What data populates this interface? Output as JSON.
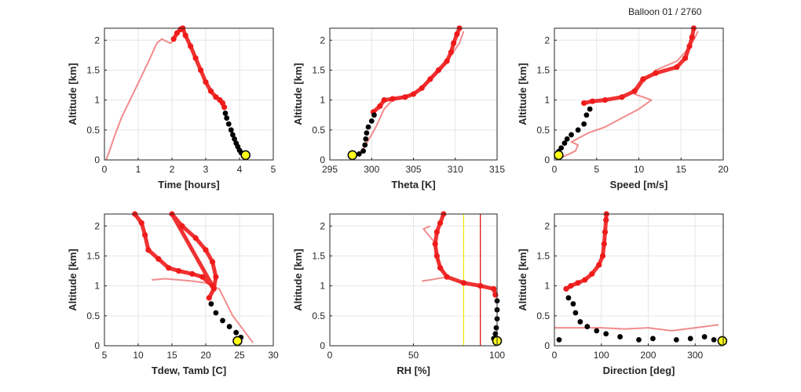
{
  "figure": {
    "title": "Balloon 01 / 2760"
  },
  "colors": {
    "red": "#ee1c1c",
    "red_faint": "#f07878",
    "black": "#000000",
    "yellow": "#ffff1a",
    "grid": "#e6e6e6",
    "axis": "#262626",
    "rh_yellow_line": "#f2e600",
    "rh_red_line": "#e00000"
  },
  "chart_data": [
    {
      "type": "scatter",
      "xlabel": "Time [hours]",
      "ylabel": "Altitude [km]",
      "xlim": [
        0,
        5
      ],
      "ylim": [
        0,
        2.2
      ],
      "xticks": [
        0,
        1,
        2,
        3,
        4,
        5
      ],
      "yticks": [
        0,
        0.5,
        1,
        1.5,
        2
      ],
      "grid": true,
      "faint_line": [
        [
          0.05,
          0
        ],
        [
          0.15,
          0.15
        ],
        [
          0.3,
          0.4
        ],
        [
          0.5,
          0.7
        ],
        [
          0.8,
          1.05
        ],
        [
          1.1,
          1.4
        ],
        [
          1.35,
          1.7
        ],
        [
          1.55,
          1.95
        ],
        [
          1.7,
          2.02
        ],
        [
          1.8,
          1.99
        ],
        [
          1.95,
          1.95
        ],
        [
          2.05,
          2.0
        ]
      ],
      "red_points": [
        [
          2.05,
          2.02
        ],
        [
          2.15,
          2.12
        ],
        [
          2.25,
          2.18
        ],
        [
          2.32,
          2.2
        ],
        [
          2.4,
          2.08
        ],
        [
          2.55,
          1.9
        ],
        [
          2.7,
          1.7
        ],
        [
          2.85,
          1.5
        ],
        [
          3.0,
          1.3
        ],
        [
          3.15,
          1.15
        ],
        [
          3.3,
          1.05
        ],
        [
          3.42,
          1.0
        ],
        [
          3.5,
          0.95
        ],
        [
          3.55,
          0.88
        ]
      ],
      "black_points": [
        [
          3.58,
          0.78
        ],
        [
          3.62,
          0.7
        ],
        [
          3.68,
          0.6
        ],
        [
          3.75,
          0.5
        ],
        [
          3.8,
          0.42
        ],
        [
          3.85,
          0.35
        ],
        [
          3.9,
          0.28
        ],
        [
          3.95,
          0.22
        ],
        [
          4.0,
          0.16
        ],
        [
          4.05,
          0.12
        ]
      ],
      "marker": [
        4.18,
        0.08
      ]
    },
    {
      "type": "scatter",
      "xlabel": "Theta [K]",
      "ylabel": "Altitude [km]",
      "xlim": [
        295,
        315
      ],
      "ylim": [
        0,
        2.2
      ],
      "xticks": [
        295,
        300,
        305,
        310,
        315
      ],
      "yticks": [
        0,
        0.5,
        1,
        1.5,
        2
      ],
      "grid": true,
      "faint_line": [
        [
          297.5,
          0.05
        ],
        [
          298.5,
          0.1
        ],
        [
          299.5,
          0.3
        ],
        [
          300.5,
          0.55
        ],
        [
          301.5,
          0.85
        ],
        [
          302.5,
          1.0
        ],
        [
          304,
          1.05
        ],
        [
          305.5,
          1.15
        ],
        [
          307,
          1.35
        ],
        [
          308.5,
          1.55
        ],
        [
          309.5,
          1.75
        ],
        [
          310.5,
          1.95
        ],
        [
          311,
          2.15
        ]
      ],
      "red_points": [
        [
          300.2,
          0.8
        ],
        [
          301,
          0.9
        ],
        [
          301.5,
          1.0
        ],
        [
          302.5,
          1.02
        ],
        [
          304,
          1.05
        ],
        [
          305,
          1.1
        ],
        [
          306,
          1.2
        ],
        [
          307,
          1.35
        ],
        [
          308,
          1.5
        ],
        [
          309,
          1.65
        ],
        [
          309.5,
          1.8
        ],
        [
          309.8,
          1.95
        ],
        [
          310.2,
          2.1
        ],
        [
          310.5,
          2.2
        ]
      ],
      "black_points": [
        [
          300.3,
          0.75
        ],
        [
          300,
          0.65
        ],
        [
          299.6,
          0.55
        ],
        [
          299.4,
          0.45
        ],
        [
          299.3,
          0.35
        ],
        [
          299.2,
          0.25
        ],
        [
          299.0,
          0.15
        ],
        [
          298.5,
          0.1
        ]
      ],
      "marker": [
        297.7,
        0.08
      ]
    },
    {
      "type": "scatter",
      "xlabel": "Speed [m/s]",
      "ylabel": "Altitude [km]",
      "xlim": [
        0,
        20
      ],
      "ylim": [
        0,
        2.2
      ],
      "xticks": [
        0,
        5,
        10,
        15,
        20
      ],
      "yticks": [
        0,
        0.5,
        1,
        1.5,
        2
      ],
      "grid": true,
      "faint_line": [
        [
          1,
          0.05
        ],
        [
          2.5,
          0.15
        ],
        [
          2.8,
          0.25
        ],
        [
          2,
          0.3
        ],
        [
          4,
          0.45
        ],
        [
          6,
          0.55
        ],
        [
          8,
          0.7
        ],
        [
          10,
          0.85
        ],
        [
          11.5,
          1.0
        ],
        [
          9.5,
          1.1
        ],
        [
          10.5,
          1.3
        ],
        [
          12,
          1.5
        ],
        [
          14.5,
          1.65
        ],
        [
          15.5,
          1.8
        ],
        [
          16.5,
          2.0
        ],
        [
          17,
          2.15
        ]
      ],
      "red_points": [
        [
          3.5,
          0.95
        ],
        [
          4.5,
          0.98
        ],
        [
          6,
          1.0
        ],
        [
          8,
          1.05
        ],
        [
          9.5,
          1.15
        ],
        [
          10.5,
          1.35
        ],
        [
          12,
          1.45
        ],
        [
          14.5,
          1.55
        ],
        [
          15.5,
          1.7
        ],
        [
          16,
          1.9
        ],
        [
          16.3,
          2.05
        ],
        [
          16.5,
          2.2
        ]
      ],
      "black_points": [
        [
          4.2,
          0.85
        ],
        [
          3.8,
          0.75
        ],
        [
          3.5,
          0.6
        ],
        [
          2.8,
          0.5
        ],
        [
          2,
          0.42
        ],
        [
          1.5,
          0.35
        ],
        [
          1.2,
          0.28
        ],
        [
          0.8,
          0.2
        ],
        [
          0.5,
          0.14
        ]
      ],
      "marker": [
        0.5,
        0.08
      ]
    },
    {
      "type": "scatter",
      "xlabel": "Tdew, Tamb [C]",
      "ylabel": "Altitude [km]",
      "xlim": [
        5,
        30
      ],
      "ylim": [
        0,
        2.2
      ],
      "xticks": [
        5,
        10,
        15,
        20,
        25,
        30
      ],
      "yticks": [
        0,
        0.5,
        1,
        1.5,
        2
      ],
      "grid": true,
      "faint_line": [
        [
          12,
          1.1
        ],
        [
          14,
          1.12
        ],
        [
          16,
          1.1
        ],
        [
          18,
          1.08
        ],
        [
          20,
          1.05
        ],
        [
          22,
          0.95
        ],
        [
          24,
          0.5
        ],
        [
          26,
          0.2
        ],
        [
          27,
          0.05
        ]
      ],
      "red_points": [
        [
          9.5,
          2.2
        ],
        [
          10.5,
          2.05
        ],
        [
          11,
          1.85
        ],
        [
          11.5,
          1.6
        ],
        [
          13,
          1.45
        ],
        [
          14.5,
          1.3
        ],
        [
          16,
          1.25
        ],
        [
          18,
          1.2
        ],
        [
          19.5,
          1.15
        ],
        [
          21,
          1.0
        ],
        [
          15,
          2.2
        ],
        [
          16.5,
          2.0
        ],
        [
          18.5,
          1.8
        ],
        [
          20,
          1.6
        ],
        [
          21,
          1.4
        ],
        [
          21.5,
          1.15
        ],
        [
          21.2,
          0.95
        ],
        [
          20.5,
          0.8
        ]
      ],
      "black_points": [
        [
          20.8,
          0.7
        ],
        [
          21.5,
          0.55
        ],
        [
          22.5,
          0.42
        ],
        [
          23.5,
          0.32
        ],
        [
          24.5,
          0.22
        ],
        [
          25.2,
          0.14
        ]
      ],
      "marker": [
        24.7,
        0.08
      ]
    },
    {
      "type": "scatter",
      "xlabel": "RH [%]",
      "ylabel": "Altitude [km]",
      "xlim": [
        0,
        100
      ],
      "ylim": [
        0,
        2.2
      ],
      "xticks": [
        0,
        50,
        100
      ],
      "yticks": [
        0,
        0.5,
        1,
        1.5,
        2
      ],
      "grid": true,
      "vlines": [
        {
          "x": 80,
          "color": "#f2e600"
        },
        {
          "x": 90,
          "color": "#e00000"
        }
      ],
      "faint_line": [
        [
          60,
          2.0
        ],
        [
          56,
          1.95
        ],
        [
          62,
          1.75
        ],
        [
          63,
          1.6
        ],
        [
          65,
          1.4
        ],
        [
          70,
          1.15
        ],
        [
          60,
          1.1
        ],
        [
          55,
          1.08
        ]
      ],
      "red_points": [
        [
          68,
          2.2
        ],
        [
          66,
          2.05
        ],
        [
          64,
          1.9
        ],
        [
          63,
          1.7
        ],
        [
          64,
          1.5
        ],
        [
          66,
          1.3
        ],
        [
          70,
          1.15
        ],
        [
          80,
          1.05
        ],
        [
          90,
          1.0
        ],
        [
          98,
          0.95
        ],
        [
          99,
          0.85
        ]
      ],
      "black_points": [
        [
          100,
          0.75
        ],
        [
          100,
          0.6
        ],
        [
          100,
          0.45
        ],
        [
          99.5,
          0.3
        ],
        [
          99,
          0.2
        ],
        [
          98,
          0.12
        ]
      ],
      "marker": [
        100,
        0.08
      ]
    },
    {
      "type": "scatter",
      "xlabel": "Direction [deg]",
      "ylabel": "Altitude [km]",
      "xlim": [
        0,
        360
      ],
      "ylim": [
        0,
        2.2
      ],
      "xticks": [
        0,
        100,
        200,
        300
      ],
      "yticks": [
        0,
        0.5,
        1,
        1.5,
        2
      ],
      "grid": true,
      "faint_line": [
        [
          0,
          0.3
        ],
        [
          50,
          0.3
        ],
        [
          100,
          0.3
        ],
        [
          150,
          0.28
        ],
        [
          200,
          0.3
        ],
        [
          250,
          0.25
        ],
        [
          300,
          0.3
        ],
        [
          350,
          0.35
        ]
      ],
      "red_points": [
        [
          25,
          0.95
        ],
        [
          35,
          1.0
        ],
        [
          50,
          1.05
        ],
        [
          65,
          1.1
        ],
        [
          80,
          1.2
        ],
        [
          95,
          1.35
        ],
        [
          103,
          1.5
        ],
        [
          106,
          1.7
        ],
        [
          108,
          1.9
        ],
        [
          110,
          2.1
        ],
        [
          111,
          2.2
        ]
      ],
      "black_points": [
        [
          30,
          0.8
        ],
        [
          40,
          0.7
        ],
        [
          45,
          0.55
        ],
        [
          55,
          0.4
        ],
        [
          70,
          0.32
        ],
        [
          90,
          0.25
        ],
        [
          110,
          0.2
        ],
        [
          140,
          0.15
        ],
        [
          180,
          0.1
        ],
        [
          210,
          0.12
        ],
        [
          260,
          0.1
        ],
        [
          290,
          0.12
        ],
        [
          320,
          0.15
        ],
        [
          340,
          0.1
        ],
        [
          10,
          0.1
        ]
      ],
      "marker": [
        358,
        0.08
      ]
    }
  ]
}
